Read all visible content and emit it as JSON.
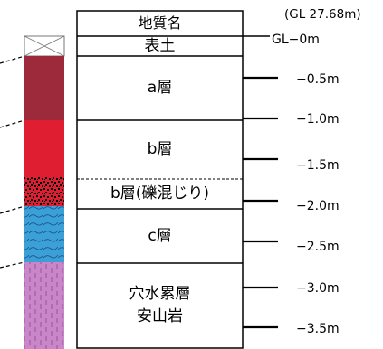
{
  "header": {
    "column_title": "地質名"
  },
  "ground_level": {
    "elevation_label": "(GL 27.68m)",
    "zero_label": "GL−0m"
  },
  "layers": [
    {
      "name": "表土",
      "color": "#ffffff",
      "pattern": "topsoil-crossbox"
    },
    {
      "name": "a層",
      "color": "#9c2a3a",
      "pattern": "solid"
    },
    {
      "name": "b層",
      "color": "#e01e32",
      "pattern": "solid"
    },
    {
      "name": "b層(礫混じり)",
      "color": "#e01e32",
      "pattern": "gravel-dots"
    },
    {
      "name": "c層",
      "color": "#3aa0d6",
      "pattern": "wavy-lines"
    },
    {
      "name": "穴水累層\n安山岩",
      "color": "#c986c9",
      "pattern": "vertical-ticks"
    }
  ],
  "depth_labels": [
    "−0.5m",
    "−1.0m",
    "−1.5m",
    "−2.0m",
    "−2.5m",
    "−3.0m",
    "−3.5m"
  ],
  "colors": {
    "line": "#000000",
    "layer_a": "#9c2a3a",
    "layer_b": "#e01e32",
    "layer_c": "#3aa0d6",
    "andesite": "#c986c9"
  }
}
